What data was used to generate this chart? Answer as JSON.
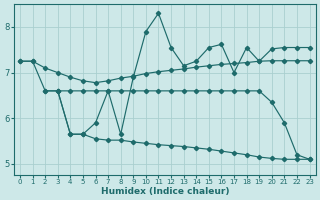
{
  "xlabel": "Humidex (Indice chaleur)",
  "bg_color": "#cde8e8",
  "grid_color": "#aacfcf",
  "line_color": "#1e6b6b",
  "xlim": [
    -0.5,
    23.5
  ],
  "ylim": [
    4.75,
    8.5
  ],
  "yticks": [
    5,
    6,
    7,
    8
  ],
  "xticks": [
    0,
    1,
    2,
    3,
    4,
    5,
    6,
    7,
    8,
    9,
    10,
    11,
    12,
    13,
    14,
    15,
    16,
    17,
    18,
    19,
    20,
    21,
    22,
    23
  ],
  "line1_x": [
    0,
    1,
    2,
    3,
    4,
    5,
    6,
    7,
    8,
    9,
    10,
    11,
    12,
    13,
    14,
    15,
    16,
    17,
    18,
    19,
    20,
    21,
    22,
    23
  ],
  "line1_y": [
    7.25,
    7.25,
    7.1,
    7.0,
    6.9,
    6.82,
    6.78,
    6.82,
    6.88,
    6.92,
    6.98,
    7.02,
    7.05,
    7.08,
    7.12,
    7.15,
    7.18,
    7.2,
    7.22,
    7.25,
    7.26,
    7.26,
    7.26,
    7.26
  ],
  "line2_x": [
    0,
    1,
    2,
    3,
    4,
    5,
    6,
    7,
    8,
    9,
    10,
    11,
    12,
    13,
    14,
    15,
    16,
    17,
    18,
    19,
    20,
    21,
    22,
    23
  ],
  "line2_y": [
    7.25,
    7.25,
    6.6,
    6.6,
    6.6,
    6.6,
    6.6,
    6.6,
    6.6,
    6.6,
    6.6,
    6.6,
    6.6,
    6.6,
    6.6,
    6.6,
    6.6,
    6.6,
    6.6,
    6.6,
    6.35,
    5.9,
    5.2,
    5.1
  ],
  "line3_x": [
    3,
    4,
    5,
    6,
    7,
    8,
    9,
    10,
    11,
    12,
    13,
    14,
    15,
    16,
    17,
    18,
    19,
    20,
    21,
    22,
    23
  ],
  "line3_y": [
    6.6,
    5.65,
    5.65,
    5.9,
    6.6,
    5.65,
    6.9,
    7.9,
    8.3,
    7.55,
    7.15,
    7.25,
    7.55,
    7.62,
    7.0,
    7.55,
    7.25,
    7.52,
    7.55,
    7.55,
    7.55
  ],
  "line4_x": [
    2,
    3,
    4,
    5,
    6,
    7,
    8,
    9,
    10,
    11,
    12,
    13,
    14,
    15,
    16,
    17,
    18,
    19,
    20,
    21,
    22,
    23
  ],
  "line4_y": [
    6.6,
    6.6,
    5.65,
    5.65,
    5.55,
    5.52,
    5.52,
    5.48,
    5.45,
    5.42,
    5.4,
    5.38,
    5.35,
    5.32,
    5.28,
    5.24,
    5.2,
    5.15,
    5.12,
    5.1,
    5.1,
    5.1
  ]
}
